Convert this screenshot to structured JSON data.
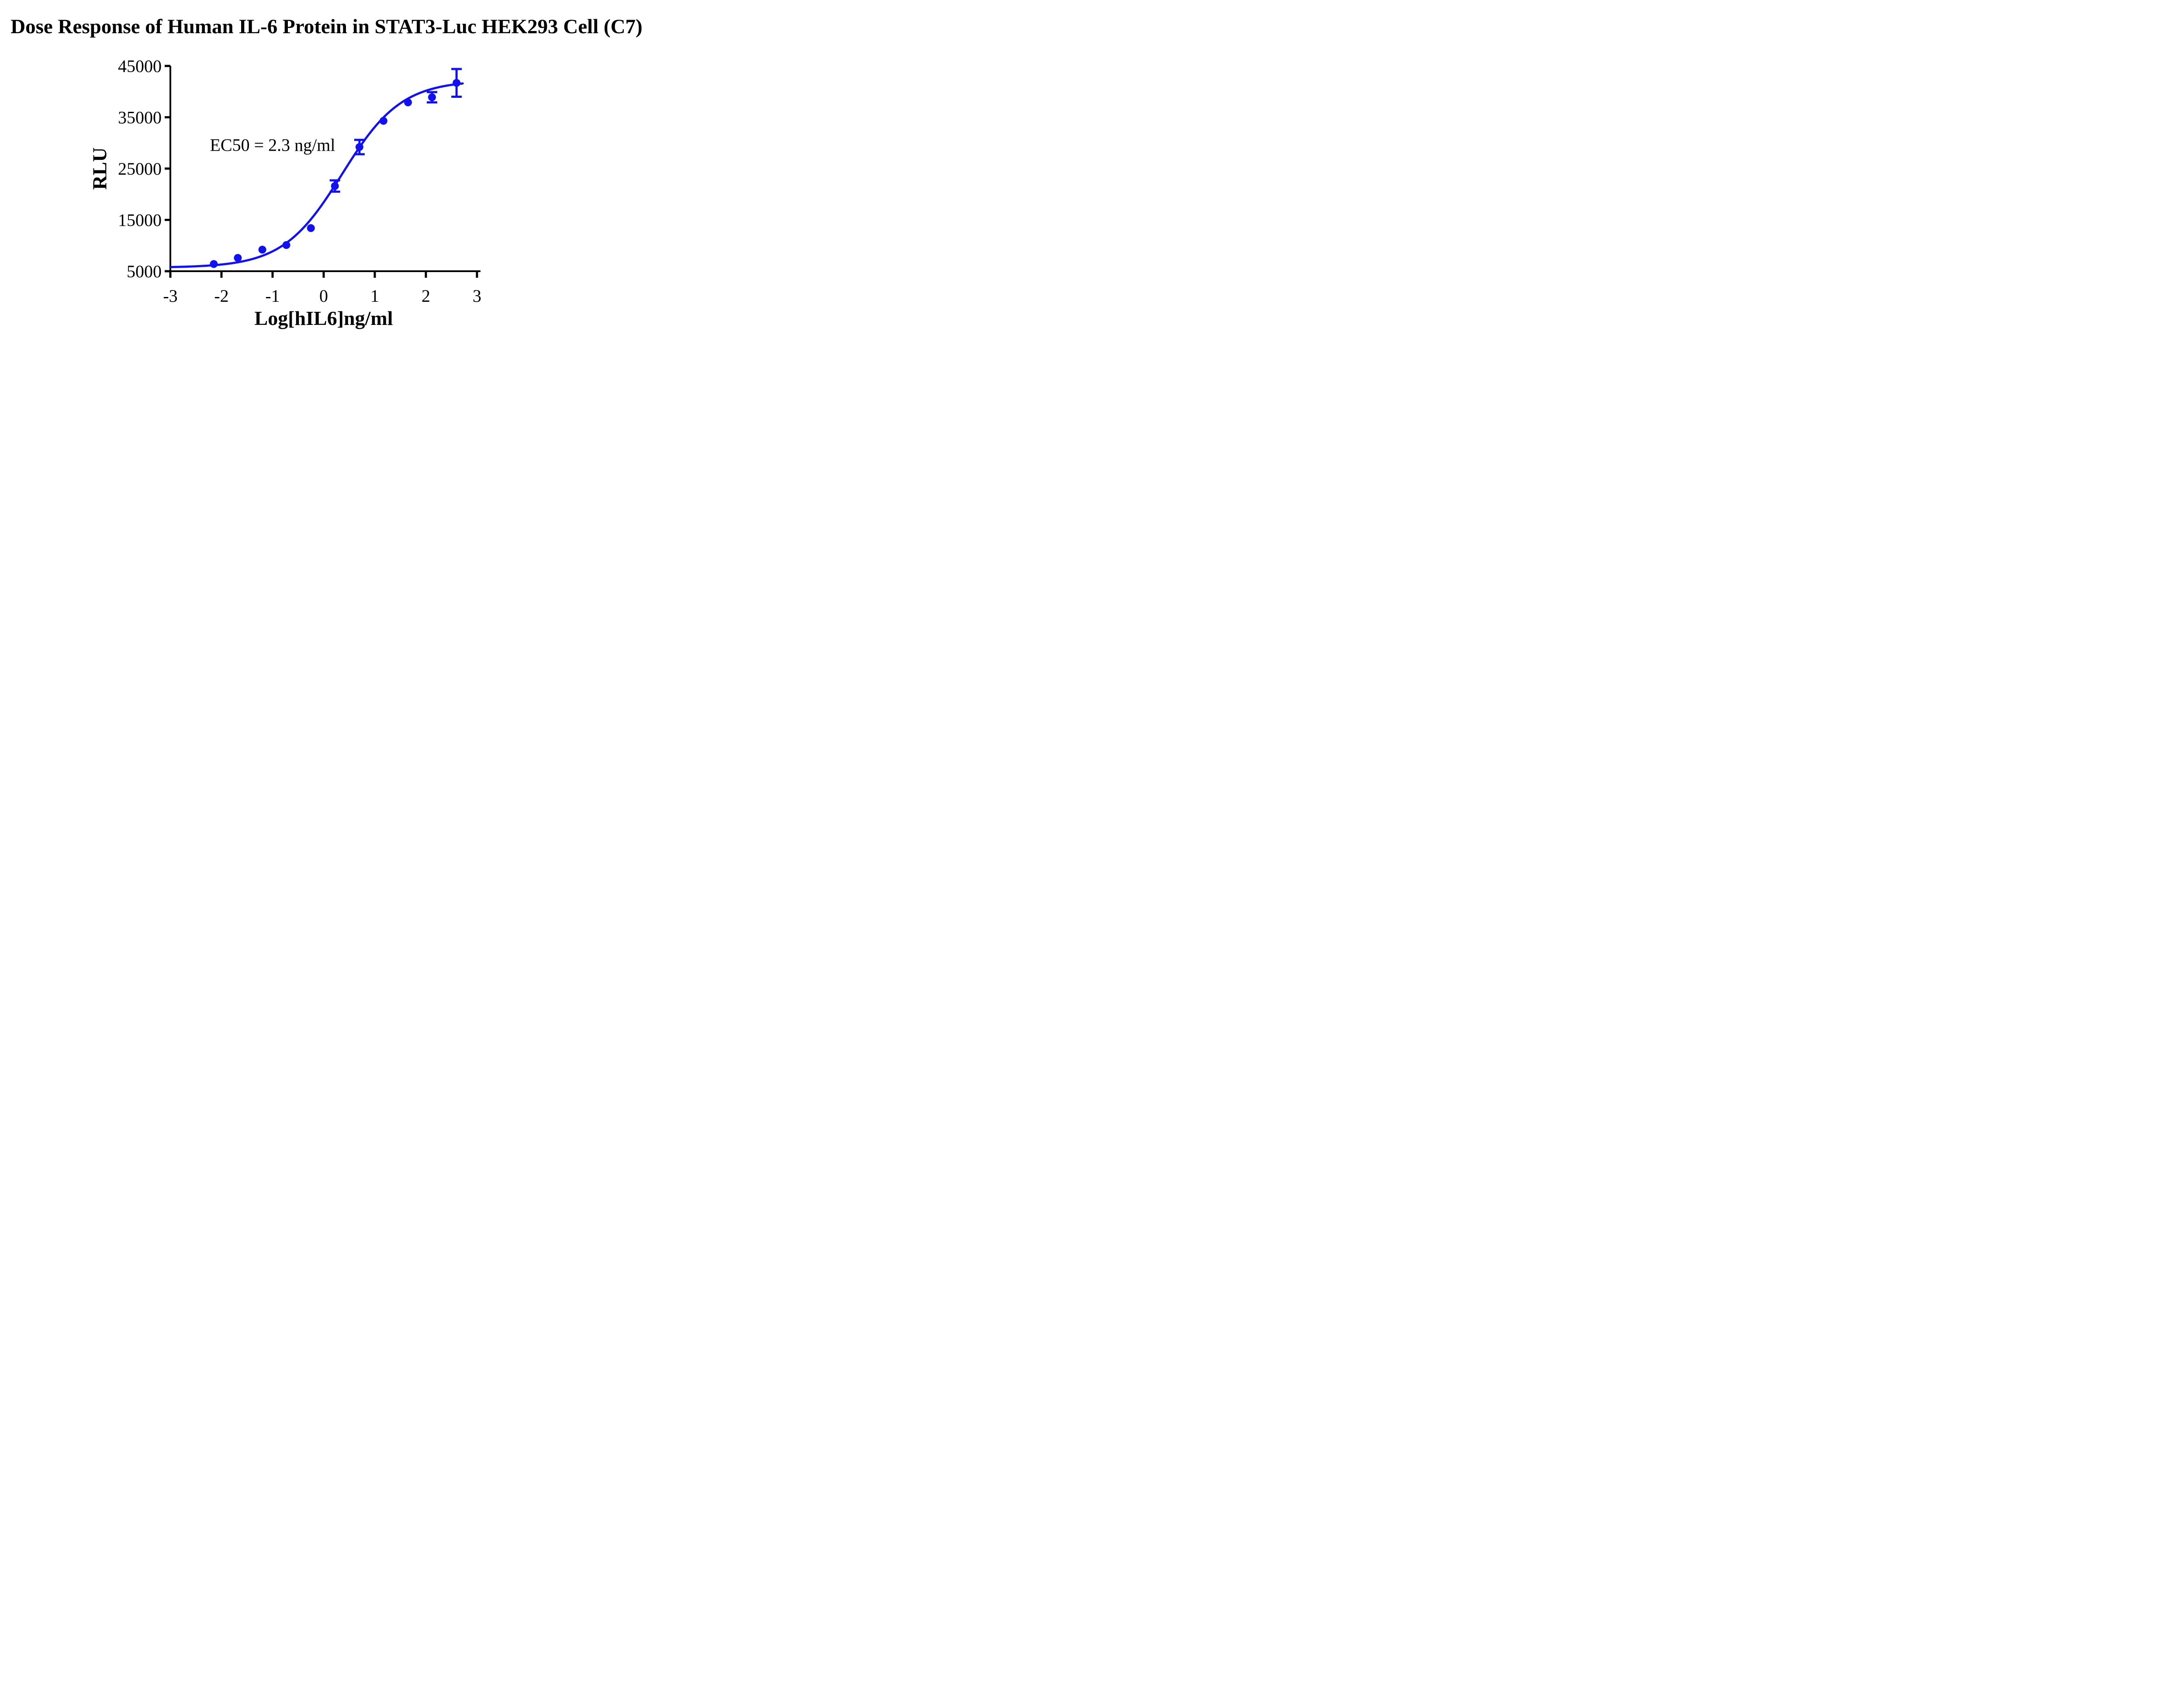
{
  "figure": {
    "background": "#ffffff"
  },
  "chart_data": {
    "type": "scatter",
    "title": "Dose Response of Human IL-6 Protein in STAT3-Luc HEK293 Cell (C7)",
    "xlabel": "Log[hIL6]ng/ml",
    "ylabel": "RLU",
    "annotation": {
      "text": "EC50 = 2.3 ng/ml",
      "x": -1.0,
      "y": 29600
    },
    "ec50_ng_ml": 2.3,
    "x_axis": {
      "min": -3,
      "max": 3,
      "ticks": [
        -3,
        -2,
        -1,
        0,
        1,
        2,
        3
      ]
    },
    "y_axis": {
      "min": 5000,
      "max": 45000,
      "ticks": [
        5000,
        15000,
        25000,
        35000,
        45000
      ]
    },
    "grid": false,
    "legend": "none",
    "colors": {
      "curve": "#1010F0",
      "axis": "#000000",
      "text": "#000000"
    },
    "series": [
      {
        "marker": "circle",
        "points": [
          {
            "x": -2.15,
            "y": 6400,
            "err": 0
          },
          {
            "x": -1.68,
            "y": 7600,
            "err": 0
          },
          {
            "x": -1.2,
            "y": 9200,
            "err": 0
          },
          {
            "x": -0.73,
            "y": 10100,
            "err": 0
          },
          {
            "x": -0.25,
            "y": 13400,
            "err": 0
          },
          {
            "x": 0.22,
            "y": 21600,
            "err": 1100
          },
          {
            "x": 0.7,
            "y": 29200,
            "err": 1400
          },
          {
            "x": 1.17,
            "y": 34300,
            "err": 0
          },
          {
            "x": 1.65,
            "y": 37900,
            "err": 0
          },
          {
            "x": 2.12,
            "y": 38900,
            "err": 1000
          },
          {
            "x": 2.6,
            "y": 41700,
            "err": 2700
          }
        ]
      }
    ],
    "fit_curve": {
      "model": "4PL",
      "bottom": 5700,
      "top": 42200,
      "log_ec50": 0.362,
      "hill": 0.75,
      "x_start": -3,
      "x_end": 2.72
    }
  }
}
